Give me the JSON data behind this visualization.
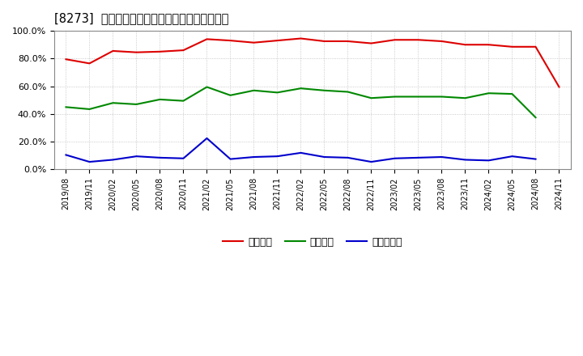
{
  "title": "[8273]  流動比率、当座比率、現預金比率の推移",
  "x_labels": [
    "2019/08",
    "2019/11",
    "2020/02",
    "2020/05",
    "2020/08",
    "2020/11",
    "2021/02",
    "2021/05",
    "2021/08",
    "2021/11",
    "2022/02",
    "2022/05",
    "2022/08",
    "2022/11",
    "2023/02",
    "2023/05",
    "2023/08",
    "2023/11",
    "2024/02",
    "2024/05",
    "2024/08",
    "2024/11"
  ],
  "ryudo": [
    79.5,
    76.5,
    85.5,
    84.5,
    85.0,
    86.0,
    94.0,
    93.0,
    91.5,
    93.0,
    94.5,
    92.5,
    92.5,
    91.0,
    93.5,
    93.5,
    92.5,
    90.0,
    90.0,
    88.5,
    88.5,
    59.5
  ],
  "toza": [
    45.0,
    43.5,
    48.0,
    47.0,
    50.5,
    49.5,
    59.5,
    53.5,
    57.0,
    55.5,
    58.5,
    57.0,
    56.0,
    51.5,
    52.5,
    52.5,
    52.5,
    51.5,
    55.0,
    54.5,
    37.5,
    null
  ],
  "genkin": [
    10.5,
    5.5,
    7.0,
    9.5,
    8.5,
    8.0,
    22.5,
    7.5,
    9.0,
    9.5,
    12.0,
    9.0,
    8.5,
    5.5,
    8.0,
    8.5,
    9.0,
    7.0,
    6.5,
    9.5,
    7.5,
    null
  ],
  "label_ryudo": "流動比率",
  "label_toza": "当座比率",
  "label_genkin": "現預金比率",
  "ryudo_color": "#dd0000",
  "toza_color": "#008800",
  "genkin_color": "#0000cc",
  "bg_color": "#ffffff",
  "grid_color": "#aaaaaa",
  "ylim": [
    0,
    100
  ],
  "yticks": [
    0,
    20,
    40,
    60,
    80,
    100
  ],
  "ytick_labels": [
    "0.0%",
    "20.0%",
    "40.0%",
    "60.0%",
    "80.0%",
    "100.0%"
  ]
}
